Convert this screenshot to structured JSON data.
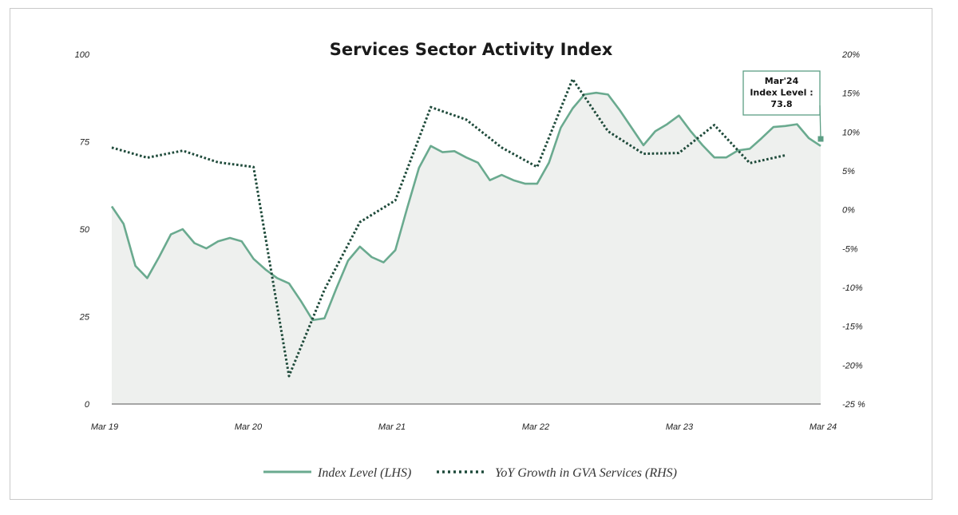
{
  "chart_data": {
    "type": "line",
    "title": "Services Sector Activity Index",
    "x_tick_labels": [
      "Mar 19",
      "Mar 20",
      "Mar 21",
      "Mar 22",
      "Mar 23",
      "Mar 24"
    ],
    "left_axis": {
      "ylim": [
        0,
        100
      ],
      "tick_labels": [
        "0",
        "25",
        "50",
        "75",
        "100"
      ]
    },
    "right_axis": {
      "ylim": [
        -25,
        20
      ],
      "tick_labels": [
        "-25 %",
        "-20%",
        "-15%",
        "-10%",
        "-5%",
        "0%",
        "5%",
        "10%",
        "15%",
        "20%"
      ]
    },
    "grid": false,
    "legend_position": "bottom",
    "series": [
      {
        "name": "Index Level (LHS)",
        "axis": "left",
        "style": "solid-area",
        "color": "#6aaa8f",
        "fill": "#eef0ee",
        "x": [
          "2019-03",
          "2019-04",
          "2019-05",
          "2019-06",
          "2019-07",
          "2019-08",
          "2019-09",
          "2019-10",
          "2019-11",
          "2019-12",
          "2020-01",
          "2020-02",
          "2020-03",
          "2020-04",
          "2020-05",
          "2020-06",
          "2020-07",
          "2020-08",
          "2020-09",
          "2020-10",
          "2020-11",
          "2020-12",
          "2021-01",
          "2021-02",
          "2021-03",
          "2021-04",
          "2021-05",
          "2021-06",
          "2021-07",
          "2021-08",
          "2021-09",
          "2021-10",
          "2021-11",
          "2021-12",
          "2022-01",
          "2022-02",
          "2022-03",
          "2022-04",
          "2022-05",
          "2022-06",
          "2022-07",
          "2022-08",
          "2022-09",
          "2022-10",
          "2022-11",
          "2022-12",
          "2023-01",
          "2023-02",
          "2023-03",
          "2023-04",
          "2023-05",
          "2023-06",
          "2023-07",
          "2023-08",
          "2023-09",
          "2023-10",
          "2023-11",
          "2023-12",
          "2024-01",
          "2024-02",
          "2024-03"
        ],
        "values": [
          56.5,
          51.5,
          39.5,
          36,
          42,
          48.5,
          50,
          46,
          44.5,
          46.5,
          47.5,
          46.5,
          41.5,
          38.5,
          36,
          34.5,
          29.5,
          24,
          24.5,
          33,
          41,
          45,
          42,
          40.5,
          44,
          56,
          67.5,
          73.8,
          72,
          72.3,
          70.5,
          69,
          64,
          65.5,
          64,
          63,
          63,
          69,
          79,
          84.5,
          88.5,
          89,
          88.5,
          84,
          79,
          74,
          78,
          80,
          82.5,
          78,
          74,
          70.5,
          70.5,
          72.5,
          73,
          76,
          79.2,
          79.5,
          80,
          76,
          73.8
        ]
      },
      {
        "name": "YoY Growth in GVA Services (RHS)",
        "axis": "right",
        "style": "dotted",
        "color": "#1e4a3a",
        "x": [
          "2019-03",
          "2019-06",
          "2019-09",
          "2019-12",
          "2020-03",
          "2020-06",
          "2020-09",
          "2020-12",
          "2021-03",
          "2021-06",
          "2021-09",
          "2021-12",
          "2022-03",
          "2022-06",
          "2022-09",
          "2022-12",
          "2023-03",
          "2023-06",
          "2023-09",
          "2023-12"
        ],
        "values": [
          8,
          6.7,
          7.6,
          6.1,
          5.5,
          -21.4,
          -10.3,
          -1.6,
          1.2,
          13.2,
          11.6,
          8,
          5.5,
          16.8,
          10.1,
          7.2,
          7.3,
          10.9,
          6,
          7
        ]
      }
    ],
    "annotation": {
      "lines": [
        "Mar'24",
        "Index Level :",
        "73.8"
      ],
      "points_to": {
        "x": "2024-03",
        "value": 73.8
      }
    }
  }
}
